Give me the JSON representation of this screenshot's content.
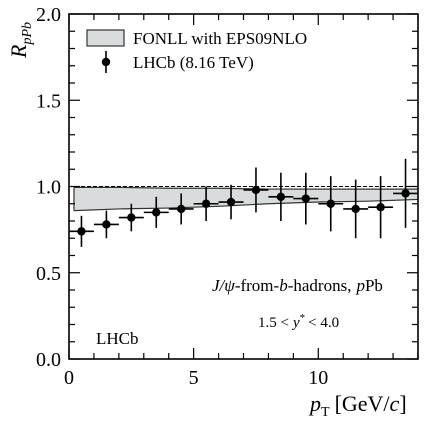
{
  "chart_data": {
    "type": "scatter",
    "xlabel_main": "p",
    "xlabel_sub": "T",
    "xlabel_unit": "[GeV/",
    "xlabel_unit_c": "c",
    "xlabel_unit_end": "]",
    "ylabel_main": "R",
    "ylabel_sub": "pPb",
    "xlim": [
      0,
      14
    ],
    "ylim": [
      0,
      2.0
    ],
    "xticks": [
      0,
      5,
      10
    ],
    "xtick_labels": [
      "0",
      "5",
      "10"
    ],
    "yticks": [
      0,
      0.5,
      1.0,
      1.5,
      2.0
    ],
    "ytick_labels": [
      "0.0",
      "0.5",
      "1.0",
      "1.5",
      "2.0"
    ],
    "reference_line_y": 1.0,
    "series": [
      {
        "name": "LHCb (8.16 TeV)",
        "marker": "circle",
        "x": [
          0.5,
          1.5,
          2.5,
          3.5,
          4.5,
          5.5,
          6.5,
          7.5,
          8.5,
          9.5,
          10.5,
          11.5,
          12.5,
          13.5
        ],
        "xerr": [
          0.5,
          0.5,
          0.5,
          0.5,
          0.5,
          0.5,
          0.5,
          0.5,
          0.5,
          0.5,
          0.5,
          0.5,
          0.5,
          0.5
        ],
        "y": [
          0.74,
          0.78,
          0.82,
          0.85,
          0.87,
          0.9,
          0.91,
          0.98,
          0.94,
          0.93,
          0.9,
          0.87,
          0.88,
          0.96
        ],
        "yerr_low": [
          0.09,
          0.08,
          0.08,
          0.09,
          0.09,
          0.1,
          0.1,
          0.13,
          0.14,
          0.15,
          0.16,
          0.17,
          0.18,
          0.2
        ],
        "yerr_high": [
          0.09,
          0.08,
          0.08,
          0.09,
          0.09,
          0.1,
          0.1,
          0.13,
          0.14,
          0.15,
          0.16,
          0.17,
          0.18,
          0.2
        ]
      }
    ],
    "band": {
      "name": "FONLL with EPS09NLO",
      "color": "#d9dcdc",
      "edge_color": "#333333",
      "x": [
        0.2,
        2,
        4,
        6,
        8,
        10,
        12,
        14
      ],
      "upper": [
        0.995,
        0.995,
        0.99,
        0.99,
        0.985,
        0.985,
        0.985,
        0.985
      ],
      "lower": [
        0.86,
        0.87,
        0.875,
        0.885,
        0.9,
        0.91,
        0.915,
        0.925
      ]
    },
    "legend_placement": "top-left",
    "annotations": {
      "process_prefix": "J/ψ",
      "process_mid": "-from-",
      "process_b": "b",
      "process_suffix": "-hadrons,",
      "process_p": "p",
      "process_pb": "Pb",
      "rapidity_lo": "1.5 <",
      "rapidity_var": "y",
      "rapidity_star": "*",
      "rapidity_hi": "< 4.0",
      "experiment": "LHCb"
    }
  }
}
